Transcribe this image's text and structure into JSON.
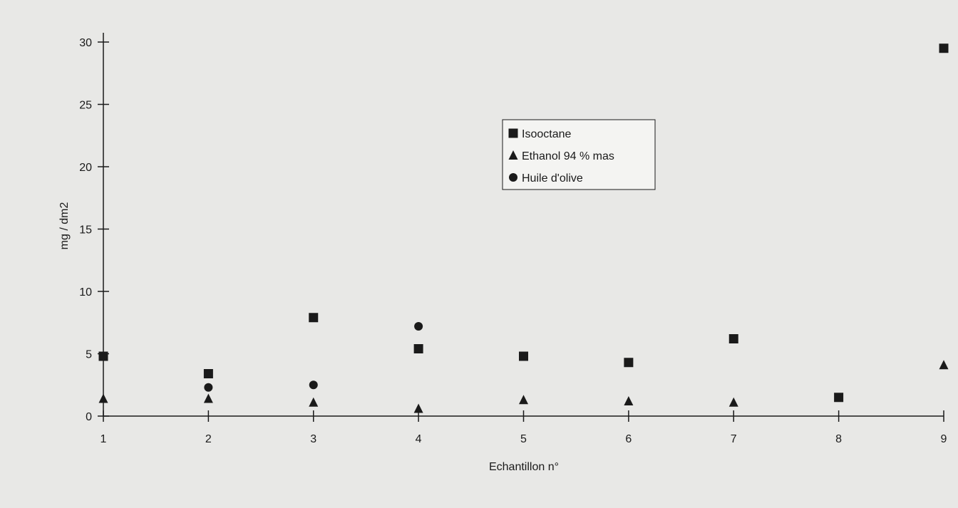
{
  "chart_data": {
    "type": "scatter",
    "xlabel": "Echantillon n°",
    "ylabel": "mg / dm2",
    "xlim": [
      1,
      9
    ],
    "ylim": [
      0,
      30
    ],
    "x_ticks": [
      "1",
      "2",
      "3",
      "4",
      "5",
      "6",
      "7",
      "8",
      "9"
    ],
    "y_ticks": [
      "0",
      "5",
      "10",
      "15",
      "20",
      "25",
      "30"
    ],
    "legend_position": "upper-middle",
    "series": [
      {
        "name": "Isooctane",
        "marker": "square",
        "x": [
          1,
          2,
          3,
          4,
          5,
          6,
          7,
          8,
          9
        ],
        "y": [
          4.8,
          3.4,
          7.9,
          5.4,
          4.8,
          4.3,
          6.2,
          1.5,
          29.5
        ]
      },
      {
        "name": "Ethanol 94 % mas",
        "marker": "triangle",
        "x": [
          1,
          2,
          3,
          4,
          5,
          6,
          7,
          8,
          9
        ],
        "y": [
          1.4,
          1.4,
          1.1,
          0.6,
          1.3,
          1.2,
          1.1,
          null,
          4.1
        ]
      },
      {
        "name": "Huile d'olive",
        "marker": "circle",
        "x": [
          2,
          3,
          4
        ],
        "y": [
          2.3,
          2.5,
          7.2
        ]
      }
    ]
  },
  "colors": {
    "background": "#e8e8e6",
    "ink": "#1a1a1a",
    "legend_background": "#f4f4f2"
  }
}
